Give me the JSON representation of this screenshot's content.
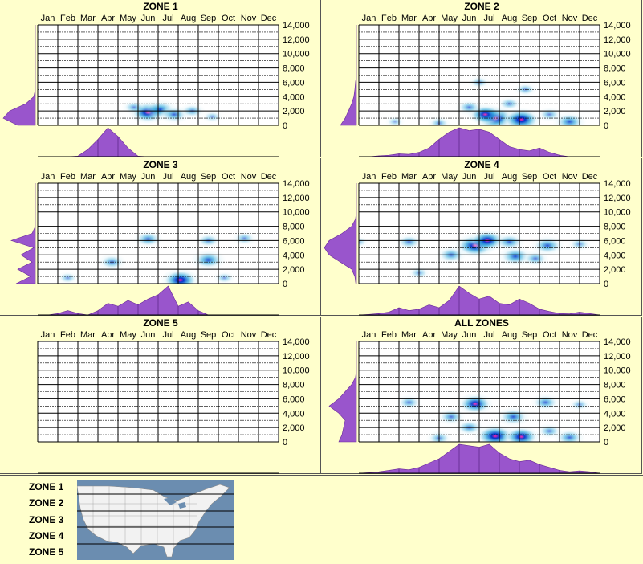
{
  "chart_data": [
    {
      "type": "heatmap",
      "title": "ZONE 1",
      "categories": [
        "Jan",
        "Feb",
        "Mar",
        "Apr",
        "May",
        "Jun",
        "Jul",
        "Aug",
        "Sep",
        "Oct",
        "Nov",
        "Dec"
      ],
      "yticks": [
        "14,000",
        "12,000",
        "10,000",
        "8,000",
        "6,000",
        "4,000",
        "2,000",
        "0"
      ],
      "ylim": [
        0,
        14000
      ],
      "hotspots": [
        {
          "month": 6.0,
          "value": 1800,
          "intensity": 0.9
        },
        {
          "month": 6.6,
          "value": 2200,
          "intensity": 0.75
        },
        {
          "month": 7.3,
          "value": 1500,
          "intensity": 0.6
        },
        {
          "month": 5.3,
          "value": 2500,
          "intensity": 0.35
        },
        {
          "month": 8.2,
          "value": 2000,
          "intensity": 0.4
        },
        {
          "month": 9.2,
          "value": 1200,
          "intensity": 0.2
        }
      ],
      "month_density": [
        0,
        0,
        0,
        0,
        0.02,
        0.25,
        0.6,
        1.0,
        0.7,
        0.3,
        0.02,
        0,
        0,
        0,
        0,
        0,
        0,
        0,
        0,
        0,
        0,
        0,
        0,
        0,
        0
      ],
      "elevation_density": [
        0.55,
        1.0,
        0.8,
        0.3,
        0.05,
        0,
        0,
        0,
        0,
        0,
        0,
        0,
        0,
        0,
        0
      ]
    },
    {
      "type": "heatmap",
      "title": "ZONE 2",
      "categories": [
        "Jan",
        "Feb",
        "Mar",
        "Apr",
        "May",
        "Jun",
        "Jul",
        "Aug",
        "Sep",
        "Oct",
        "Nov",
        "Dec"
      ],
      "yticks": [
        "14,000",
        "12,000",
        "10,000",
        "8,000",
        "6,000",
        "4,000",
        "2,000",
        "0"
      ],
      "ylim": [
        0,
        14000
      ],
      "hotspots": [
        {
          "month": 7.3,
          "value": 1000,
          "intensity": 1.0
        },
        {
          "month": 8.6,
          "value": 800,
          "intensity": 0.95
        },
        {
          "month": 6.8,
          "value": 1500,
          "intensity": 0.8
        },
        {
          "month": 11.0,
          "value": 500,
          "intensity": 0.7
        },
        {
          "month": 6.0,
          "value": 2500,
          "intensity": 0.45
        },
        {
          "month": 8.0,
          "value": 3000,
          "intensity": 0.35
        },
        {
          "month": 8.8,
          "value": 5000,
          "intensity": 0.3
        },
        {
          "month": 6.5,
          "value": 6000,
          "intensity": 0.25
        },
        {
          "month": 10.0,
          "value": 1500,
          "intensity": 0.35
        },
        {
          "month": 4.5,
          "value": 300,
          "intensity": 0.3
        },
        {
          "month": 2.3,
          "value": 500,
          "intensity": 0.15
        }
      ],
      "month_density": [
        0,
        0,
        0.03,
        0.05,
        0.1,
        0.08,
        0.15,
        0.3,
        0.6,
        0.85,
        1.0,
        0.9,
        0.95,
        0.85,
        0.6,
        0.35,
        0.25,
        0.2,
        0.3,
        0.15,
        0.05,
        0,
        0,
        0,
        0
      ],
      "elevation_density": [
        0.5,
        0.35,
        0.25,
        0.15,
        0.08,
        0.05,
        0.03,
        0,
        0,
        0,
        0,
        0,
        0,
        0,
        0
      ]
    },
    {
      "type": "heatmap",
      "title": "ZONE 3",
      "categories": [
        "Jan",
        "Feb",
        "Mar",
        "Apr",
        "May",
        "Jun",
        "Jul",
        "Aug",
        "Sep",
        "Oct",
        "Nov",
        "Dec"
      ],
      "yticks": [
        "14,000",
        "12,000",
        "10,000",
        "8,000",
        "6,000",
        "4,000",
        "2,000",
        "0"
      ],
      "ylim": [
        0,
        14000
      ],
      "hotspots": [
        {
          "month": 7.6,
          "value": 500,
          "intensity": 0.9
        },
        {
          "month": 9.0,
          "value": 3300,
          "intensity": 0.75
        },
        {
          "month": 6.0,
          "value": 6200,
          "intensity": 0.55
        },
        {
          "month": 4.2,
          "value": 3000,
          "intensity": 0.5
        },
        {
          "month": 9.0,
          "value": 6000,
          "intensity": 0.4
        },
        {
          "month": 10.8,
          "value": 6300,
          "intensity": 0.35
        },
        {
          "month": 2.0,
          "value": 800,
          "intensity": 0.25
        },
        {
          "month": 9.8,
          "value": 800,
          "intensity": 0.25
        }
      ],
      "month_density": [
        0,
        0,
        0.05,
        0.15,
        0.05,
        0,
        0.15,
        0.4,
        0.3,
        0.5,
        0.35,
        0.55,
        0.7,
        1.0,
        0.3,
        0.45,
        0.15,
        0,
        0,
        0,
        0,
        0,
        0,
        0,
        0
      ],
      "elevation_density": [
        0.6,
        0.15,
        0.55,
        0.1,
        0.45,
        0.05,
        0.75,
        0.1,
        0,
        0,
        0,
        0,
        0,
        0,
        0
      ]
    },
    {
      "type": "heatmap",
      "title": "ZONE 4",
      "categories": [
        "Jan",
        "Feb",
        "Mar",
        "Apr",
        "May",
        "Jun",
        "Jul",
        "Aug",
        "Sep",
        "Oct",
        "Nov",
        "Dec"
      ],
      "yticks": [
        "14,000",
        "12,000",
        "10,000",
        "8,000",
        "6,000",
        "4,000",
        "2,000",
        "0"
      ],
      "ylim": [
        0,
        14000
      ],
      "hotspots": [
        {
          "month": 6.3,
          "value": 5300,
          "intensity": 1.0
        },
        {
          "month": 6.9,
          "value": 6000,
          "intensity": 0.85
        },
        {
          "month": 8.3,
          "value": 3800,
          "intensity": 0.75
        },
        {
          "month": 9.9,
          "value": 5300,
          "intensity": 0.7
        },
        {
          "month": 8.0,
          "value": 5800,
          "intensity": 0.6
        },
        {
          "month": 5.1,
          "value": 4000,
          "intensity": 0.55
        },
        {
          "month": 3.0,
          "value": 5800,
          "intensity": 0.45
        },
        {
          "month": 11.5,
          "value": 5500,
          "intensity": 0.3
        },
        {
          "month": 9.3,
          "value": 3500,
          "intensity": 0.45
        },
        {
          "month": 3.5,
          "value": 1500,
          "intensity": 0.25
        },
        {
          "month": 0.5,
          "value": 5800,
          "intensity": 0.15
        }
      ],
      "month_density": [
        0,
        0.02,
        0.05,
        0.1,
        0.25,
        0.15,
        0.2,
        0.35,
        0.25,
        0.5,
        1.0,
        0.75,
        0.55,
        0.65,
        0.4,
        0.35,
        0.55,
        0.4,
        0.2,
        0.12,
        0.05,
        0.04,
        0.1,
        0.05,
        0
      ],
      "elevation_density": [
        0.02,
        0.05,
        0.15,
        0.5,
        0.85,
        1.0,
        0.85,
        0.45,
        0.15,
        0.03,
        0,
        0,
        0,
        0,
        0
      ]
    },
    {
      "type": "heatmap",
      "title": "ZONE 5",
      "categories": [
        "Jan",
        "Feb",
        "Mar",
        "Apr",
        "May",
        "Jun",
        "Jul",
        "Aug",
        "Sep",
        "Oct",
        "Nov",
        "Dec"
      ],
      "yticks": [
        "14,000",
        "12,000",
        "10,000",
        "8,000",
        "6,000",
        "4,000",
        "2,000",
        "0"
      ],
      "ylim": [
        0,
        14000
      ],
      "hotspots": [],
      "month_density": [],
      "elevation_density": []
    },
    {
      "type": "heatmap",
      "title": "ALL ZONES",
      "categories": [
        "Jan",
        "Feb",
        "Mar",
        "Apr",
        "May",
        "Jun",
        "Jul",
        "Aug",
        "Sep",
        "Oct",
        "Nov",
        "Dec"
      ],
      "yticks": [
        "14,000",
        "12,000",
        "10,000",
        "8,000",
        "6,000",
        "4,000",
        "2,000",
        "0"
      ],
      "ylim": [
        0,
        14000
      ],
      "hotspots": [
        {
          "month": 7.3,
          "value": 800,
          "intensity": 1.0
        },
        {
          "month": 8.6,
          "value": 700,
          "intensity": 0.85
        },
        {
          "month": 6.3,
          "value": 5300,
          "intensity": 0.8
        },
        {
          "month": 8.2,
          "value": 3500,
          "intensity": 0.7
        },
        {
          "month": 9.8,
          "value": 5500,
          "intensity": 0.55
        },
        {
          "month": 5.1,
          "value": 3500,
          "intensity": 0.5
        },
        {
          "month": 11.0,
          "value": 600,
          "intensity": 0.6
        },
        {
          "month": 3.0,
          "value": 5500,
          "intensity": 0.4
        },
        {
          "month": 4.5,
          "value": 500,
          "intensity": 0.4
        },
        {
          "month": 6.0,
          "value": 2000,
          "intensity": 0.5
        },
        {
          "month": 11.5,
          "value": 5200,
          "intensity": 0.25
        },
        {
          "month": 10.0,
          "value": 1500,
          "intensity": 0.4
        }
      ],
      "month_density": [
        0,
        0.02,
        0.05,
        0.1,
        0.15,
        0.12,
        0.2,
        0.35,
        0.5,
        0.75,
        1.0,
        0.95,
        0.9,
        1.0,
        0.7,
        0.5,
        0.4,
        0.45,
        0.3,
        0.2,
        0.1,
        0.05,
        0.08,
        0.05,
        0
      ],
      "elevation_density": [
        0.55,
        0.45,
        0.4,
        0.35,
        0.55,
        0.85,
        0.55,
        0.35,
        0.15,
        0.03,
        0,
        0,
        0,
        0,
        0
      ]
    }
  ],
  "legend": {
    "zones": [
      "ZONE 1",
      "ZONE 2",
      "ZONE 3",
      "ZONE 4",
      "ZONE 5"
    ]
  },
  "colors": {
    "background": "#ffffcc",
    "density": "#9955cc",
    "heat_low": "#ddf2f8",
    "heat_mid": "#33aadd",
    "heat_high": "#0033cc",
    "heat_peak": "#ff22aa"
  }
}
